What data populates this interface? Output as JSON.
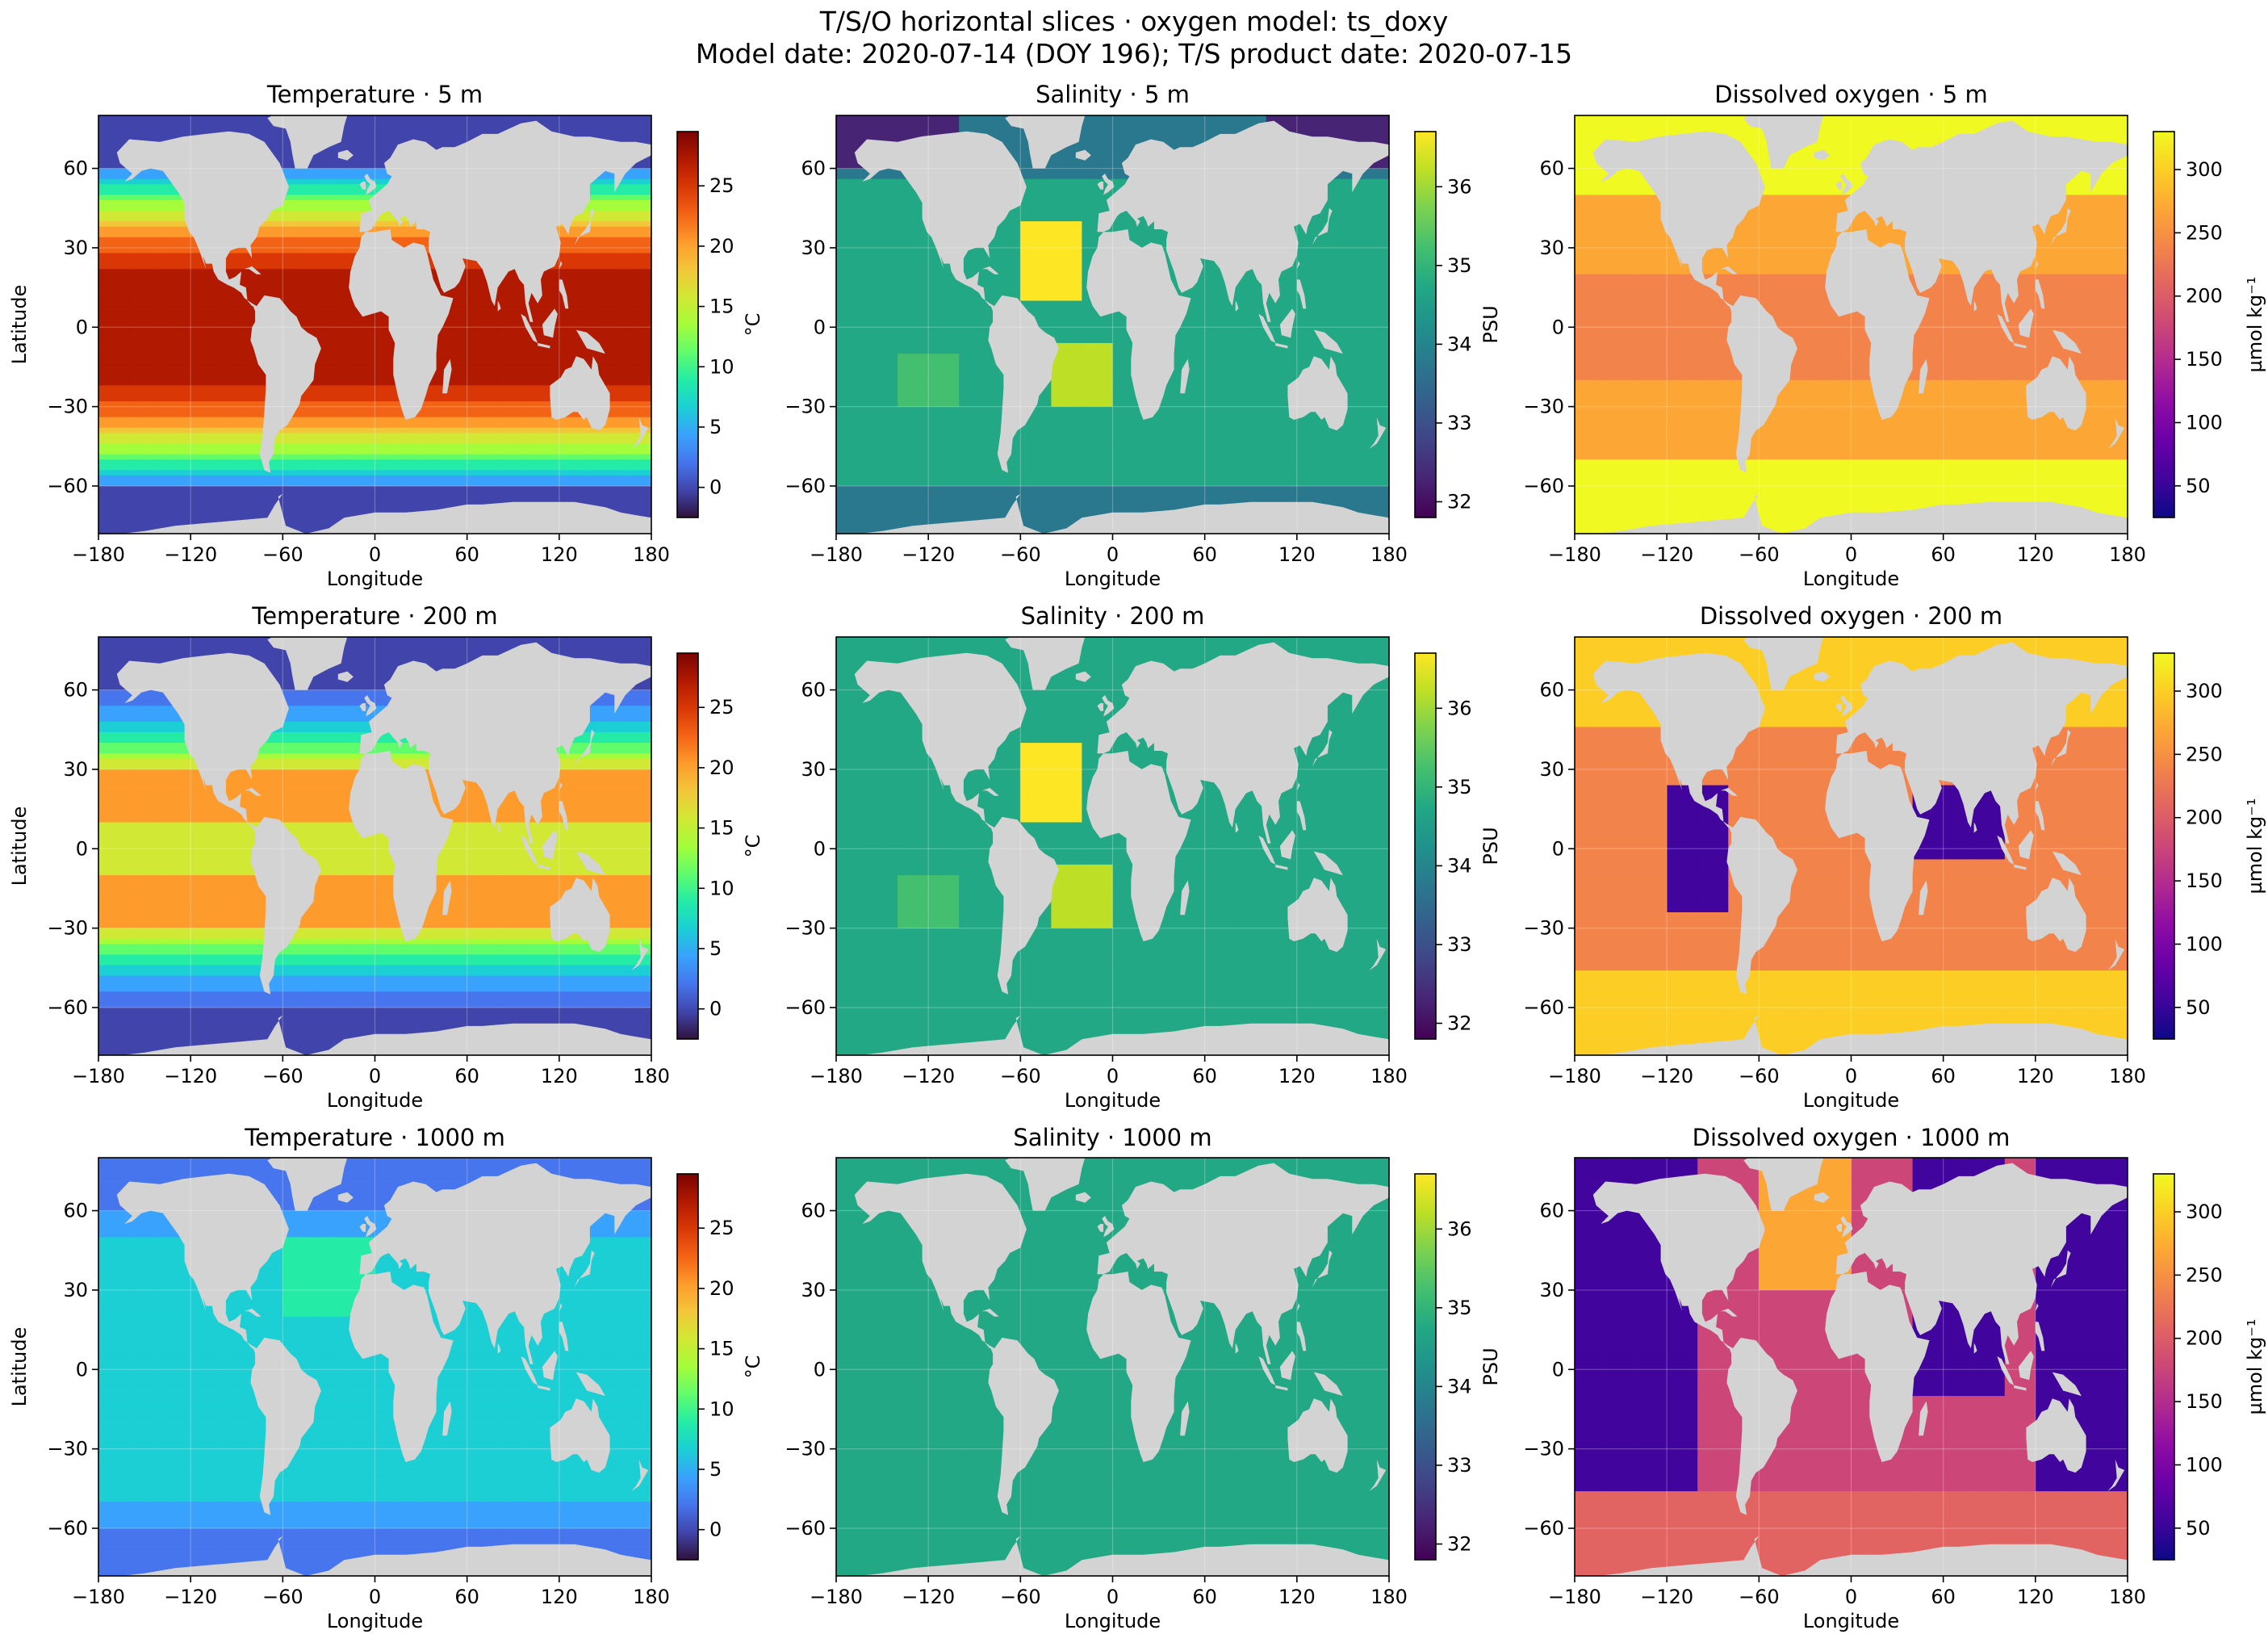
{
  "title": {
    "line1": "T/S/O horizontal slices · oxygen model: ts_doxy",
    "line2": "Model date: 2020-07-14 (DOY 196); T/S product date: 2020-07-15"
  },
  "colors": {
    "land": "#d3d3d3",
    "turbo": [
      "#30123b",
      "#4145ab",
      "#4675ed",
      "#39a2fc",
      "#1bcfd4",
      "#24eca6",
      "#61fc6c",
      "#a4fc3b",
      "#d1e834",
      "#f3c63a",
      "#fe9b2d",
      "#f36315",
      "#d93806",
      "#b11901",
      "#7a0403"
    ],
    "viridis": [
      "#440154",
      "#482475",
      "#414487",
      "#355f8d",
      "#2a788e",
      "#21918c",
      "#22a884",
      "#44bf70",
      "#7ad151",
      "#bddf26",
      "#fde725"
    ],
    "plasma": [
      "#0d0887",
      "#41049d",
      "#6a00a8",
      "#8f0da4",
      "#b12a90",
      "#cc4778",
      "#e16462",
      "#f2844b",
      "#fca636",
      "#fcce25",
      "#f0f921"
    ]
  },
  "chart_data": [
    {
      "type": "heatmap",
      "title": "Temperature · 5 m",
      "xlabel": "Longitude",
      "ylabel": "Latitude",
      "cbar_label": "°C",
      "xlim": [
        -180,
        180
      ],
      "ylim": [
        -78,
        80
      ],
      "xticks": [
        "−180",
        "−120",
        "−60",
        "0",
        "60",
        "120",
        "180"
      ],
      "yticks": [
        "60",
        "30",
        "0",
        "−30",
        "−60"
      ],
      "cbar_range": [
        -2.5,
        29.5
      ],
      "cbar_ticks": [
        "0",
        "5",
        "10",
        "15",
        "20",
        "25"
      ],
      "colormap": "turbo",
      "variable": "temperature",
      "depth_m": 5,
      "grid": true
    },
    {
      "type": "heatmap",
      "title": "Salinity · 5 m",
      "xlabel": "Longitude",
      "ylabel": "",
      "cbar_label": "PSU",
      "xlim": [
        -180,
        180
      ],
      "ylim": [
        -78,
        80
      ],
      "xticks": [
        "−180",
        "−120",
        "−60",
        "0",
        "60",
        "120",
        "180"
      ],
      "yticks": [
        "60",
        "30",
        "0",
        "−30",
        "−60"
      ],
      "cbar_range": [
        31.8,
        36.7
      ],
      "cbar_ticks": [
        "32",
        "33",
        "34",
        "35",
        "36"
      ],
      "colormap": "viridis",
      "variable": "salinity",
      "depth_m": 5,
      "grid": true
    },
    {
      "type": "heatmap",
      "title": "Dissolved oxygen · 5 m",
      "xlabel": "Longitude",
      "ylabel": "",
      "cbar_label": "µmol kg⁻¹",
      "xlim": [
        -180,
        180
      ],
      "ylim": [
        -78,
        80
      ],
      "xticks": [
        "−180",
        "−120",
        "−60",
        "0",
        "60",
        "120",
        "180"
      ],
      "yticks": [
        "60",
        "30",
        "0",
        "−30",
        "−60"
      ],
      "cbar_range": [
        25,
        330
      ],
      "cbar_ticks": [
        "50",
        "100",
        "150",
        "200",
        "250",
        "300"
      ],
      "colormap": "plasma",
      "variable": "oxygen",
      "depth_m": 5,
      "grid": true
    },
    {
      "type": "heatmap",
      "title": "Temperature · 200 m",
      "xlabel": "Longitude",
      "ylabel": "Latitude",
      "cbar_label": "°C",
      "xlim": [
        -180,
        180
      ],
      "ylim": [
        -78,
        80
      ],
      "xticks": [
        "−180",
        "−120",
        "−60",
        "0",
        "60",
        "120",
        "180"
      ],
      "yticks": [
        "60",
        "30",
        "0",
        "−30",
        "−60"
      ],
      "cbar_range": [
        -2.5,
        29.5
      ],
      "cbar_ticks": [
        "0",
        "5",
        "10",
        "15",
        "20",
        "25"
      ],
      "colormap": "turbo",
      "variable": "temperature",
      "depth_m": 200,
      "grid": true
    },
    {
      "type": "heatmap",
      "title": "Salinity · 200 m",
      "xlabel": "Longitude",
      "ylabel": "",
      "cbar_label": "PSU",
      "xlim": [
        -180,
        180
      ],
      "ylim": [
        -78,
        80
      ],
      "xticks": [
        "−180",
        "−120",
        "−60",
        "0",
        "60",
        "120",
        "180"
      ],
      "yticks": [
        "60",
        "30",
        "0",
        "−30",
        "−60"
      ],
      "cbar_range": [
        31.8,
        36.7
      ],
      "cbar_ticks": [
        "32",
        "33",
        "34",
        "35",
        "36"
      ],
      "colormap": "viridis",
      "variable": "salinity",
      "depth_m": 200,
      "grid": true
    },
    {
      "type": "heatmap",
      "title": "Dissolved oxygen · 200 m",
      "xlabel": "Longitude",
      "ylabel": "",
      "cbar_label": "µmol kg⁻¹",
      "xlim": [
        -180,
        180
      ],
      "ylim": [
        -78,
        80
      ],
      "xticks": [
        "−180",
        "−120",
        "−60",
        "0",
        "60",
        "120",
        "180"
      ],
      "yticks": [
        "60",
        "30",
        "0",
        "−30",
        "−60"
      ],
      "cbar_range": [
        25,
        330
      ],
      "cbar_ticks": [
        "50",
        "100",
        "150",
        "200",
        "250",
        "300"
      ],
      "colormap": "plasma",
      "variable": "oxygen",
      "depth_m": 200,
      "grid": true
    },
    {
      "type": "heatmap",
      "title": "Temperature · 1000 m",
      "xlabel": "Longitude",
      "ylabel": "Latitude",
      "cbar_label": "°C",
      "xlim": [
        -180,
        180
      ],
      "ylim": [
        -78,
        80
      ],
      "xticks": [
        "−180",
        "−120",
        "−60",
        "0",
        "60",
        "120",
        "180"
      ],
      "yticks": [
        "60",
        "30",
        "0",
        "−30",
        "−60"
      ],
      "cbar_range": [
        -2.5,
        29.5
      ],
      "cbar_ticks": [
        "0",
        "5",
        "10",
        "15",
        "20",
        "25"
      ],
      "colormap": "turbo",
      "variable": "temperature",
      "depth_m": 1000,
      "grid": true
    },
    {
      "type": "heatmap",
      "title": "Salinity · 1000 m",
      "xlabel": "Longitude",
      "ylabel": "",
      "cbar_label": "PSU",
      "xlim": [
        -180,
        180
      ],
      "ylim": [
        -78,
        80
      ],
      "xticks": [
        "−180",
        "−120",
        "−60",
        "0",
        "60",
        "120",
        "180"
      ],
      "yticks": [
        "60",
        "30",
        "0",
        "−30",
        "−60"
      ],
      "cbar_range": [
        31.8,
        36.7
      ],
      "cbar_ticks": [
        "32",
        "33",
        "34",
        "35",
        "36"
      ],
      "colormap": "viridis",
      "variable": "salinity",
      "depth_m": 1000,
      "grid": true
    },
    {
      "type": "heatmap",
      "title": "Dissolved oxygen · 1000 m",
      "xlabel": "Longitude",
      "ylabel": "",
      "cbar_label": "µmol kg⁻¹",
      "xlim": [
        -180,
        180
      ],
      "ylim": [
        -78,
        80
      ],
      "xticks": [
        "−180",
        "−120",
        "−60",
        "0",
        "60",
        "120",
        "180"
      ],
      "yticks": [
        "60",
        "30",
        "0",
        "−30",
        "−60"
      ],
      "cbar_range": [
        25,
        330
      ],
      "cbar_ticks": [
        "50",
        "100",
        "150",
        "200",
        "250",
        "300"
      ],
      "colormap": "plasma",
      "variable": "oxygen",
      "depth_m": 1000,
      "grid": true
    }
  ]
}
